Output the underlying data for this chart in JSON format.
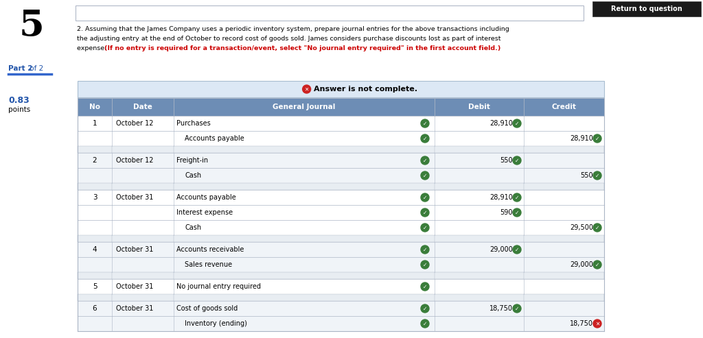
{
  "title_number": "5",
  "question_line1": "2. Assuming that the James Company uses a periodic inventory system, prepare journal entries for the above transactions including",
  "question_line2": "the adjusting entry at the end of October to record cost of goods sold. James considers purchase discounts lost as part of interest",
  "question_line3_black": "expense. ",
  "question_line3_red": "(If no entry is required for a transaction/event, select \"No journal entry required\" in the first account field.)",
  "part_label_bold": "Part 2",
  "part_label_normal": " of 2",
  "points_value": "0.83",
  "points_label": "points",
  "answer_incomplete": "Answer is not complete.",
  "button_text": "Return to question",
  "header_cols": [
    "No",
    "Date",
    "General Journal",
    "Debit",
    "Credit"
  ],
  "header_bg": "#6d8db5",
  "header_text_color": "#ffffff",
  "row_bg_white": "#ffffff",
  "row_bg_light": "#f0f4f8",
  "separator_bg": "#e8edf2",
  "table_border": "#aab5c5",
  "answer_banner_bg": "#dce8f5",
  "answer_banner_border": "#a8bdd0",
  "bg_color": "#ffffff",
  "rows": [
    {
      "no": "1",
      "date": "October 12",
      "account": "Purchases",
      "debit": "28,910",
      "credit": "",
      "indent": false,
      "debit_check": "green",
      "credit_check": "none",
      "row_check": "green",
      "is_sep": false
    },
    {
      "no": "",
      "date": "",
      "account": "Accounts payable",
      "debit": "",
      "credit": "28,910",
      "indent": true,
      "debit_check": "none",
      "credit_check": "green",
      "row_check": "green",
      "is_sep": false
    },
    {
      "no": "",
      "date": "",
      "account": "",
      "debit": "",
      "credit": "",
      "indent": false,
      "debit_check": "none",
      "credit_check": "none",
      "row_check": "none",
      "is_sep": true
    },
    {
      "no": "2",
      "date": "October 12",
      "account": "Freight-in",
      "debit": "550",
      "credit": "",
      "indent": false,
      "debit_check": "green",
      "credit_check": "none",
      "row_check": "green",
      "is_sep": false
    },
    {
      "no": "",
      "date": "",
      "account": "Cash",
      "debit": "",
      "credit": "550",
      "indent": true,
      "debit_check": "none",
      "credit_check": "green",
      "row_check": "green",
      "is_sep": false
    },
    {
      "no": "",
      "date": "",
      "account": "",
      "debit": "",
      "credit": "",
      "indent": false,
      "debit_check": "none",
      "credit_check": "none",
      "row_check": "none",
      "is_sep": true
    },
    {
      "no": "3",
      "date": "October 31",
      "account": "Accounts payable",
      "debit": "28,910",
      "credit": "",
      "indent": false,
      "debit_check": "green",
      "credit_check": "none",
      "row_check": "green",
      "is_sep": false
    },
    {
      "no": "",
      "date": "",
      "account": "Interest expense",
      "debit": "590",
      "credit": "",
      "indent": false,
      "debit_check": "green",
      "credit_check": "none",
      "row_check": "green",
      "is_sep": false
    },
    {
      "no": "",
      "date": "",
      "account": "Cash",
      "debit": "",
      "credit": "29,500",
      "indent": true,
      "debit_check": "none",
      "credit_check": "green",
      "row_check": "green",
      "is_sep": false
    },
    {
      "no": "",
      "date": "",
      "account": "",
      "debit": "",
      "credit": "",
      "indent": false,
      "debit_check": "none",
      "credit_check": "none",
      "row_check": "none",
      "is_sep": true
    },
    {
      "no": "4",
      "date": "October 31",
      "account": "Accounts receivable",
      "debit": "29,000",
      "credit": "",
      "indent": false,
      "debit_check": "green",
      "credit_check": "none",
      "row_check": "green",
      "is_sep": false
    },
    {
      "no": "",
      "date": "",
      "account": "Sales revenue",
      "debit": "",
      "credit": "29,000",
      "indent": true,
      "debit_check": "none",
      "credit_check": "green",
      "row_check": "green",
      "is_sep": false
    },
    {
      "no": "",
      "date": "",
      "account": "",
      "debit": "",
      "credit": "",
      "indent": false,
      "debit_check": "none",
      "credit_check": "none",
      "row_check": "none",
      "is_sep": true
    },
    {
      "no": "5",
      "date": "October 31",
      "account": "No journal entry required",
      "debit": "",
      "credit": "",
      "indent": false,
      "debit_check": "none",
      "credit_check": "none",
      "row_check": "green",
      "is_sep": false
    },
    {
      "no": "",
      "date": "",
      "account": "",
      "debit": "",
      "credit": "",
      "indent": false,
      "debit_check": "none",
      "credit_check": "none",
      "row_check": "none",
      "is_sep": true
    },
    {
      "no": "6",
      "date": "October 31",
      "account": "Cost of goods sold",
      "debit": "18,750",
      "credit": "",
      "indent": false,
      "debit_check": "green",
      "credit_check": "none",
      "row_check": "green",
      "is_sep": false
    },
    {
      "no": "",
      "date": "",
      "account": "Inventory (ending)",
      "debit": "",
      "credit": "18,750",
      "indent": true,
      "debit_check": "none",
      "credit_check": "red",
      "row_check": "green",
      "is_sep": false
    }
  ]
}
